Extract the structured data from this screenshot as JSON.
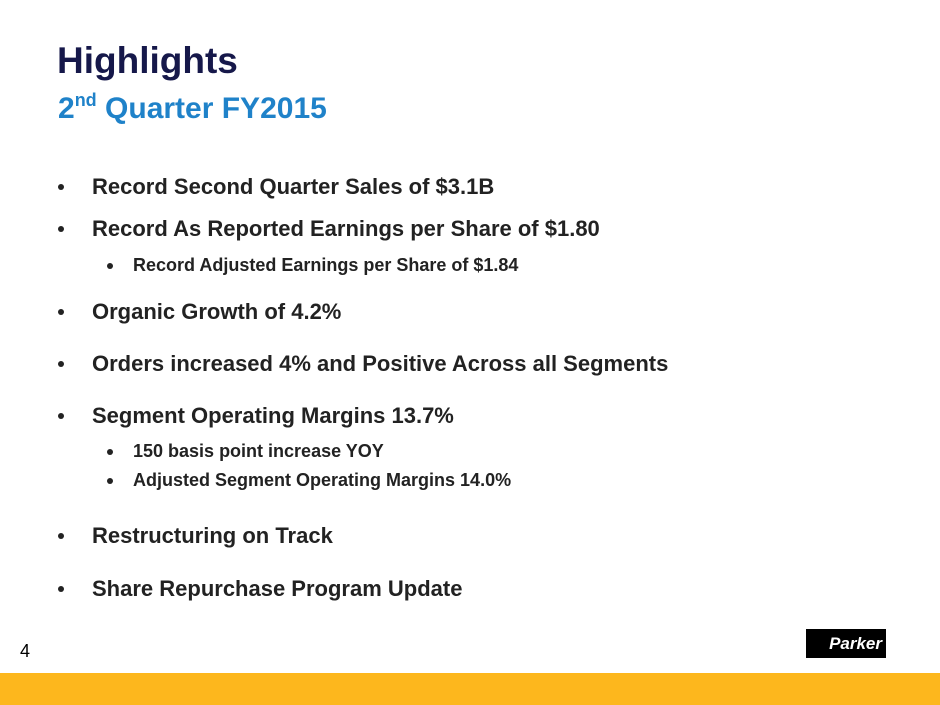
{
  "header": {
    "title": "Highlights",
    "subtitle": {
      "number": "2",
      "suffix": "nd",
      "rest": "Quarter FY2015"
    }
  },
  "bullets": [
    {
      "text": "Record Second Quarter Sales of $3.1B"
    },
    {
      "text": "Record As Reported Earnings per Share of $1.80",
      "sub": [
        "Record Adjusted Earnings per Share of $1.84"
      ]
    },
    {
      "text": "Organic Growth of 4.2%"
    },
    {
      "text": "Orders increased 4% and Positive Across all Segments"
    },
    {
      "text": "Segment Operating Margins 13.7%",
      "sub": [
        "150 basis point increase YOY",
        "Adjusted Segment Operating Margins 14.0%"
      ]
    },
    {
      "text": "Restructuring on Track"
    },
    {
      "text": "Share Repurchase Program Update"
    }
  ],
  "footer": {
    "page_number": "4",
    "logo": "Parker"
  }
}
